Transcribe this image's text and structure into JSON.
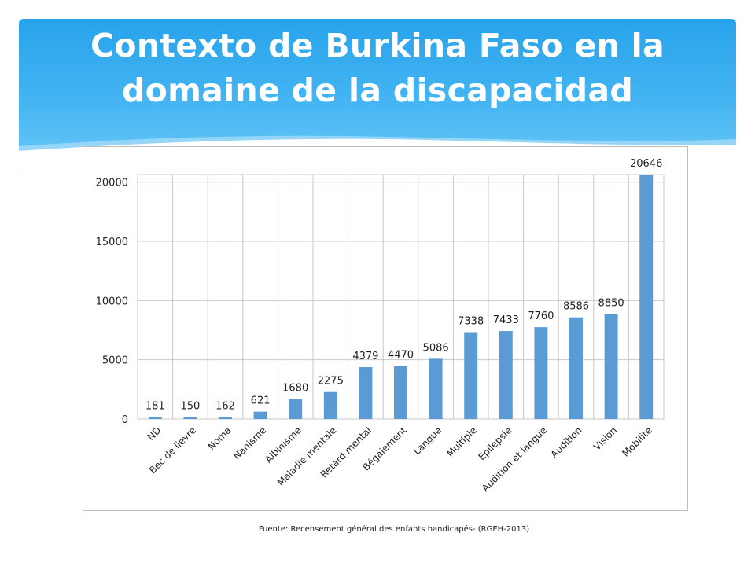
{
  "slide": {
    "title_line1": "Contexto de Burkina Faso en la",
    "title_line2": "domaine de la discapacidad",
    "source": "Fuente: Recensement général des enfants handicapés- (RGEH-2013)"
  },
  "colors": {
    "banner": "#3aaef0",
    "bar": "#5b9bd5",
    "grid": "#c8c8c8"
  },
  "chart_data": {
    "type": "bar",
    "categories": [
      "ND",
      "Bec de lièvre",
      "Noma",
      "Nanisme",
      "Albinisme",
      "Maladie mentale",
      "Retard mental",
      "Bégaiement",
      "Langue",
      "Multiple",
      "Epilepsie",
      "Audition et langue",
      "Audition",
      "Vision",
      "Mobilité"
    ],
    "values": [
      181,
      150,
      162,
      621,
      1680,
      2275,
      4379,
      4470,
      5086,
      7338,
      7433,
      7760,
      8586,
      8850,
      20646
    ],
    "data_labels": [
      "181",
      "150",
      "162",
      "621",
      "1680",
      "2275",
      "4379",
      "4470",
      "5086",
      "7338",
      "7433",
      "7760",
      "8586",
      "8850",
      "20646"
    ],
    "y_ticks": [
      0,
      5000,
      10000,
      15000,
      20000
    ],
    "y_tick_labels": [
      "0",
      "5000",
      "10000",
      "15000",
      "20000"
    ],
    "ylim": [
      0,
      20646
    ],
    "grid": true,
    "legend": false,
    "title": "",
    "xlabel": "",
    "ylabel": ""
  }
}
